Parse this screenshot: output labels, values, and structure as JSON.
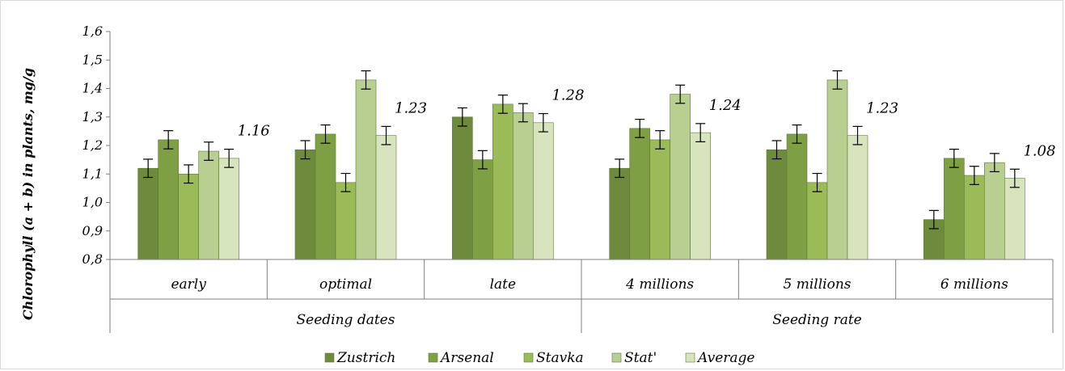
{
  "chart_data": {
    "type": "bar",
    "ylabel": "Chlorophyll (a + b) in plants, mg/g",
    "ylim": [
      0.8,
      1.6
    ],
    "yticks": [
      "0,8",
      "0,9",
      "1,0",
      "1,1",
      "1,2",
      "1,3",
      "1,4",
      "1,5",
      "1,6"
    ],
    "categories": [
      "early",
      "optimal",
      "late",
      "4 millions",
      "5 millions",
      "6 millions"
    ],
    "groups": [
      {
        "label": "Seeding dates",
        "categories": [
          "early",
          "optimal",
          "late"
        ]
      },
      {
        "label": "Seeding rate",
        "categories": [
          "4 millions",
          "5 millions",
          "6 millions"
        ]
      }
    ],
    "series": [
      {
        "name": "Zustrich",
        "color": "#6e8b3d",
        "values": [
          1.12,
          1.185,
          1.3,
          1.12,
          1.185,
          0.94
        ]
      },
      {
        "name": "Arsenal",
        "color": "#7f9f45",
        "values": [
          1.22,
          1.24,
          1.15,
          1.26,
          1.24,
          1.155
        ]
      },
      {
        "name": "Stavka",
        "color": "#9bbb59",
        "values": [
          1.1,
          1.07,
          1.345,
          1.22,
          1.07,
          1.095
        ]
      },
      {
        "name": "Stat'",
        "color": "#b9cf92",
        "values": [
          1.18,
          1.43,
          1.315,
          1.38,
          1.43,
          1.14
        ]
      },
      {
        "name": "Average",
        "color": "#d7e4bd",
        "values": [
          1.155,
          1.235,
          1.28,
          1.245,
          1.235,
          1.085
        ]
      }
    ],
    "error": 0.032,
    "average_labels": [
      "1.16",
      "1.23",
      "1.28",
      "1.24",
      "1.23",
      "1.08"
    ],
    "legend_position": "bottom",
    "grid": false
  }
}
